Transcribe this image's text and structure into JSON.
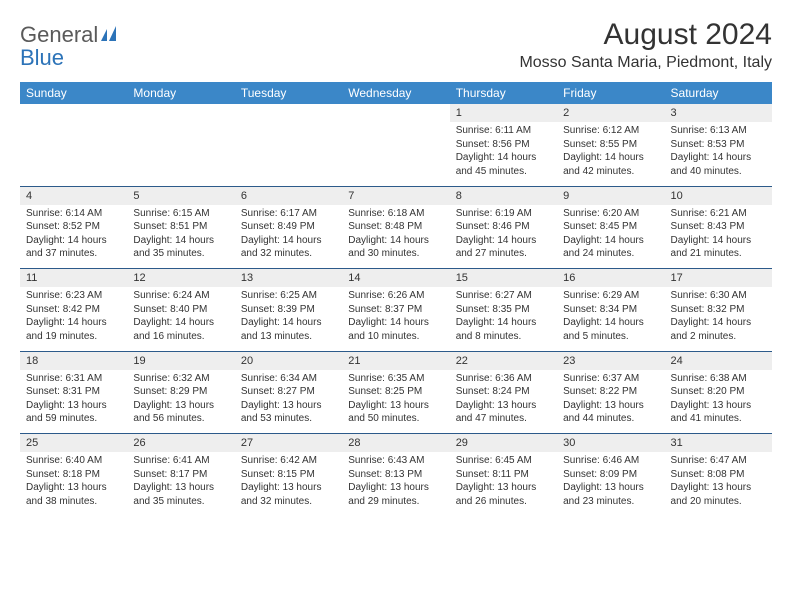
{
  "logo": {
    "general": "General",
    "blue": "Blue"
  },
  "header": {
    "title": "August 2024",
    "location": "Mosso Santa Maria, Piedmont, Italy"
  },
  "colors": {
    "header_bg": "#3b87c8",
    "header_text": "#ffffff",
    "daynum_bg": "#eeeeee",
    "week_border": "#2c5a8a",
    "text": "#333333",
    "logo_gray": "#5a5a5a",
    "logo_blue": "#2c73b8"
  },
  "dow": [
    "Sunday",
    "Monday",
    "Tuesday",
    "Wednesday",
    "Thursday",
    "Friday",
    "Saturday"
  ],
  "weeks": [
    [
      null,
      null,
      null,
      null,
      {
        "n": "1",
        "sr": "Sunrise: 6:11 AM",
        "ss": "Sunset: 8:56 PM",
        "dl": "Daylight: 14 hours and 45 minutes."
      },
      {
        "n": "2",
        "sr": "Sunrise: 6:12 AM",
        "ss": "Sunset: 8:55 PM",
        "dl": "Daylight: 14 hours and 42 minutes."
      },
      {
        "n": "3",
        "sr": "Sunrise: 6:13 AM",
        "ss": "Sunset: 8:53 PM",
        "dl": "Daylight: 14 hours and 40 minutes."
      }
    ],
    [
      {
        "n": "4",
        "sr": "Sunrise: 6:14 AM",
        "ss": "Sunset: 8:52 PM",
        "dl": "Daylight: 14 hours and 37 minutes."
      },
      {
        "n": "5",
        "sr": "Sunrise: 6:15 AM",
        "ss": "Sunset: 8:51 PM",
        "dl": "Daylight: 14 hours and 35 minutes."
      },
      {
        "n": "6",
        "sr": "Sunrise: 6:17 AM",
        "ss": "Sunset: 8:49 PM",
        "dl": "Daylight: 14 hours and 32 minutes."
      },
      {
        "n": "7",
        "sr": "Sunrise: 6:18 AM",
        "ss": "Sunset: 8:48 PM",
        "dl": "Daylight: 14 hours and 30 minutes."
      },
      {
        "n": "8",
        "sr": "Sunrise: 6:19 AM",
        "ss": "Sunset: 8:46 PM",
        "dl": "Daylight: 14 hours and 27 minutes."
      },
      {
        "n": "9",
        "sr": "Sunrise: 6:20 AM",
        "ss": "Sunset: 8:45 PM",
        "dl": "Daylight: 14 hours and 24 minutes."
      },
      {
        "n": "10",
        "sr": "Sunrise: 6:21 AM",
        "ss": "Sunset: 8:43 PM",
        "dl": "Daylight: 14 hours and 21 minutes."
      }
    ],
    [
      {
        "n": "11",
        "sr": "Sunrise: 6:23 AM",
        "ss": "Sunset: 8:42 PM",
        "dl": "Daylight: 14 hours and 19 minutes."
      },
      {
        "n": "12",
        "sr": "Sunrise: 6:24 AM",
        "ss": "Sunset: 8:40 PM",
        "dl": "Daylight: 14 hours and 16 minutes."
      },
      {
        "n": "13",
        "sr": "Sunrise: 6:25 AM",
        "ss": "Sunset: 8:39 PM",
        "dl": "Daylight: 14 hours and 13 minutes."
      },
      {
        "n": "14",
        "sr": "Sunrise: 6:26 AM",
        "ss": "Sunset: 8:37 PM",
        "dl": "Daylight: 14 hours and 10 minutes."
      },
      {
        "n": "15",
        "sr": "Sunrise: 6:27 AM",
        "ss": "Sunset: 8:35 PM",
        "dl": "Daylight: 14 hours and 8 minutes."
      },
      {
        "n": "16",
        "sr": "Sunrise: 6:29 AM",
        "ss": "Sunset: 8:34 PM",
        "dl": "Daylight: 14 hours and 5 minutes."
      },
      {
        "n": "17",
        "sr": "Sunrise: 6:30 AM",
        "ss": "Sunset: 8:32 PM",
        "dl": "Daylight: 14 hours and 2 minutes."
      }
    ],
    [
      {
        "n": "18",
        "sr": "Sunrise: 6:31 AM",
        "ss": "Sunset: 8:31 PM",
        "dl": "Daylight: 13 hours and 59 minutes."
      },
      {
        "n": "19",
        "sr": "Sunrise: 6:32 AM",
        "ss": "Sunset: 8:29 PM",
        "dl": "Daylight: 13 hours and 56 minutes."
      },
      {
        "n": "20",
        "sr": "Sunrise: 6:34 AM",
        "ss": "Sunset: 8:27 PM",
        "dl": "Daylight: 13 hours and 53 minutes."
      },
      {
        "n": "21",
        "sr": "Sunrise: 6:35 AM",
        "ss": "Sunset: 8:25 PM",
        "dl": "Daylight: 13 hours and 50 minutes."
      },
      {
        "n": "22",
        "sr": "Sunrise: 6:36 AM",
        "ss": "Sunset: 8:24 PM",
        "dl": "Daylight: 13 hours and 47 minutes."
      },
      {
        "n": "23",
        "sr": "Sunrise: 6:37 AM",
        "ss": "Sunset: 8:22 PM",
        "dl": "Daylight: 13 hours and 44 minutes."
      },
      {
        "n": "24",
        "sr": "Sunrise: 6:38 AM",
        "ss": "Sunset: 8:20 PM",
        "dl": "Daylight: 13 hours and 41 minutes."
      }
    ],
    [
      {
        "n": "25",
        "sr": "Sunrise: 6:40 AM",
        "ss": "Sunset: 8:18 PM",
        "dl": "Daylight: 13 hours and 38 minutes."
      },
      {
        "n": "26",
        "sr": "Sunrise: 6:41 AM",
        "ss": "Sunset: 8:17 PM",
        "dl": "Daylight: 13 hours and 35 minutes."
      },
      {
        "n": "27",
        "sr": "Sunrise: 6:42 AM",
        "ss": "Sunset: 8:15 PM",
        "dl": "Daylight: 13 hours and 32 minutes."
      },
      {
        "n": "28",
        "sr": "Sunrise: 6:43 AM",
        "ss": "Sunset: 8:13 PM",
        "dl": "Daylight: 13 hours and 29 minutes."
      },
      {
        "n": "29",
        "sr": "Sunrise: 6:45 AM",
        "ss": "Sunset: 8:11 PM",
        "dl": "Daylight: 13 hours and 26 minutes."
      },
      {
        "n": "30",
        "sr": "Sunrise: 6:46 AM",
        "ss": "Sunset: 8:09 PM",
        "dl": "Daylight: 13 hours and 23 minutes."
      },
      {
        "n": "31",
        "sr": "Sunrise: 6:47 AM",
        "ss": "Sunset: 8:08 PM",
        "dl": "Daylight: 13 hours and 20 minutes."
      }
    ]
  ]
}
